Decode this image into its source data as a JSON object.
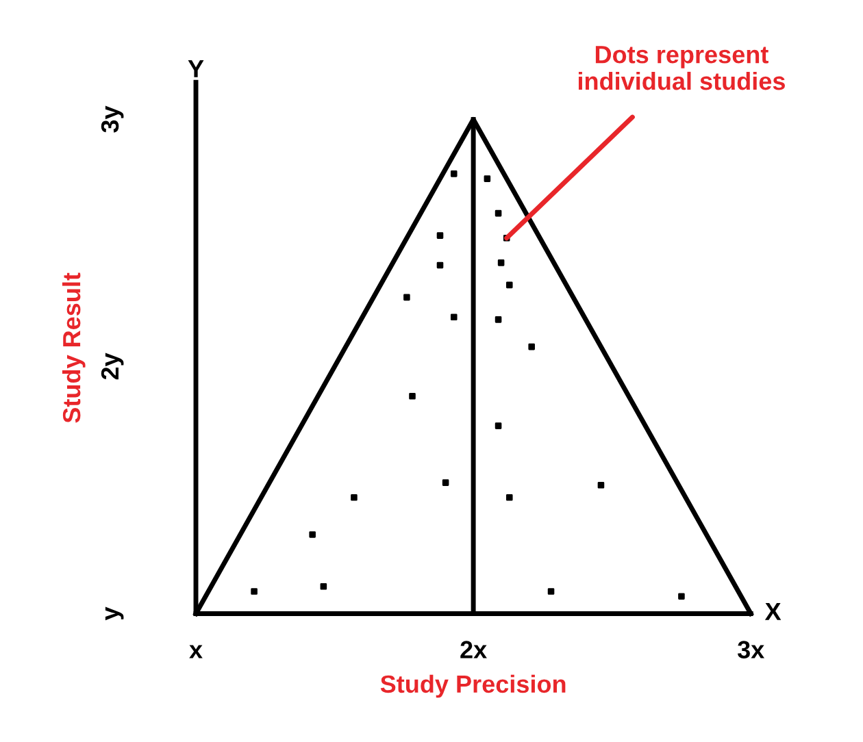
{
  "chart_data": {
    "type": "scatter",
    "xlabel": "Study Precision",
    "ylabel": "Study Result",
    "xlim": [
      1,
      3
    ],
    "ylim": [
      1,
      3.15
    ],
    "xticks": [
      {
        "value": 1,
        "label": "x"
      },
      {
        "value": 2,
        "label": "2x"
      },
      {
        "value": 3,
        "label": "3x"
      }
    ],
    "yticks": [
      {
        "value": 1,
        "label": "y"
      },
      {
        "value": 2,
        "label": "2y"
      },
      {
        "value": 3,
        "label": "3y"
      }
    ],
    "grid": false,
    "series": [
      {
        "marker": "square",
        "color": "#000000",
        "x": [
          1.93,
          2.05,
          2.09,
          1.88,
          2.12,
          1.88,
          2.1,
          2.13,
          1.76,
          1.93,
          2.09,
          2.21,
          1.78,
          2.09,
          1.9,
          1.57,
          2.13,
          2.46,
          1.42,
          1.21,
          1.46,
          2.28,
          2.75
        ],
        "values": [
          2.78,
          2.76,
          2.62,
          2.53,
          2.52,
          2.41,
          2.42,
          2.33,
          2.28,
          2.2,
          2.19,
          2.08,
          1.88,
          1.76,
          1.53,
          1.47,
          1.47,
          1.52,
          1.32,
          1.09,
          1.11,
          1.09,
          1.07
        ]
      },
      {
        "type": "line",
        "color": "#000000",
        "x": [
          1,
          2,
          3
        ],
        "values": [
          1,
          3,
          1
        ]
      }
    ],
    "ref_lines": [
      {
        "axis": "x",
        "value": 2,
        "color": "#000000"
      }
    ],
    "annotations": [
      "Y",
      "X",
      {
        "text": "Dots represent\nindividual studies",
        "x": 2.12,
        "y": 2.52
      }
    ]
  }
}
